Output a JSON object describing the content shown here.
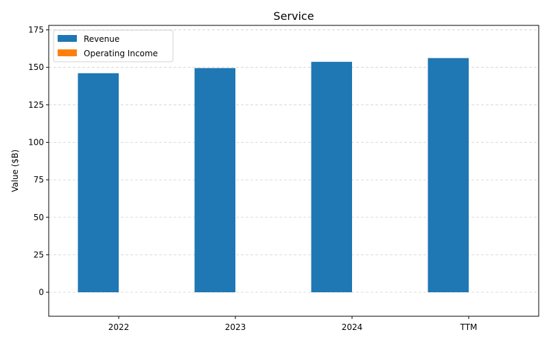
{
  "chart_data": {
    "type": "bar",
    "title": "Service",
    "xlabel": "",
    "ylabel": "Value ($B)",
    "categories": [
      "2022",
      "2023",
      "2024",
      "TTM"
    ],
    "series": [
      {
        "name": "Revenue",
        "color": "#1f77b4",
        "values": [
          146.1,
          149.5,
          153.7,
          156.2
        ]
      },
      {
        "name": "Operating Income",
        "color": "#ff7f0e",
        "values": [
          0,
          0,
          0,
          0
        ]
      }
    ],
    "ylim": [
      -16,
      178
    ],
    "yticks": [
      0,
      25,
      50,
      75,
      100,
      125,
      150,
      175
    ],
    "grid": "y",
    "legend": "upper-left"
  }
}
